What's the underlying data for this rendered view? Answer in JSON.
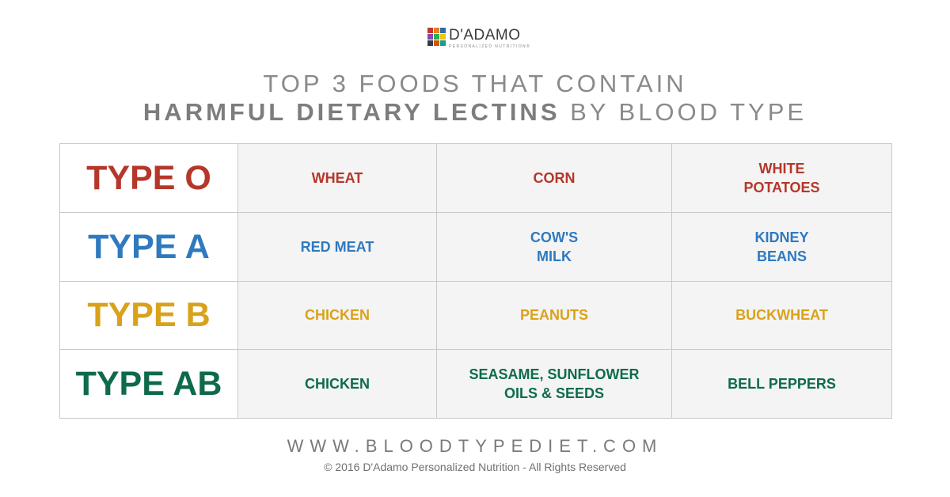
{
  "brand": {
    "name": "D'ADAMO",
    "tagline": "PERSONALIZED NUTRITION®",
    "mark_colors": [
      "#c0392b",
      "#e67e22",
      "#2e6da4",
      "#8e44ad",
      "#27ae60",
      "#f1c40f",
      "#2c3e50",
      "#d35400",
      "#16a085"
    ]
  },
  "title": {
    "line1": "TOP 3 FOODS THAT CONTAIN",
    "line2_bold": "HARMFUL DIETARY LECTINS",
    "line2_rest": " BY BLOOD TYPE"
  },
  "rows": [
    {
      "type": "TYPE O",
      "color": "#b5372a",
      "foods": [
        "WHEAT",
        "CORN",
        "WHITE\nPOTATOES"
      ]
    },
    {
      "type": "TYPE A",
      "color": "#2f79bf",
      "foods": [
        "RED MEAT",
        "COW'S\nMILK",
        "KIDNEY\nBEANS"
      ]
    },
    {
      "type": "TYPE B",
      "color": "#d9a21b",
      "foods": [
        "CHICKEN",
        "PEANUTS",
        "BUCKWHEAT"
      ]
    },
    {
      "type": "TYPE AB",
      "color": "#0d6b4a",
      "foods": [
        "CHICKEN",
        "SEASAME, SUNFLOWER\nOILS & SEEDS",
        "BELL PEPPERS"
      ]
    }
  ],
  "footer": {
    "url": "WWW.BLOODTYPEDIET.COM",
    "copyright": "© 2016 D'Adamo Personalized Nutrition - All Rights Reserved"
  }
}
